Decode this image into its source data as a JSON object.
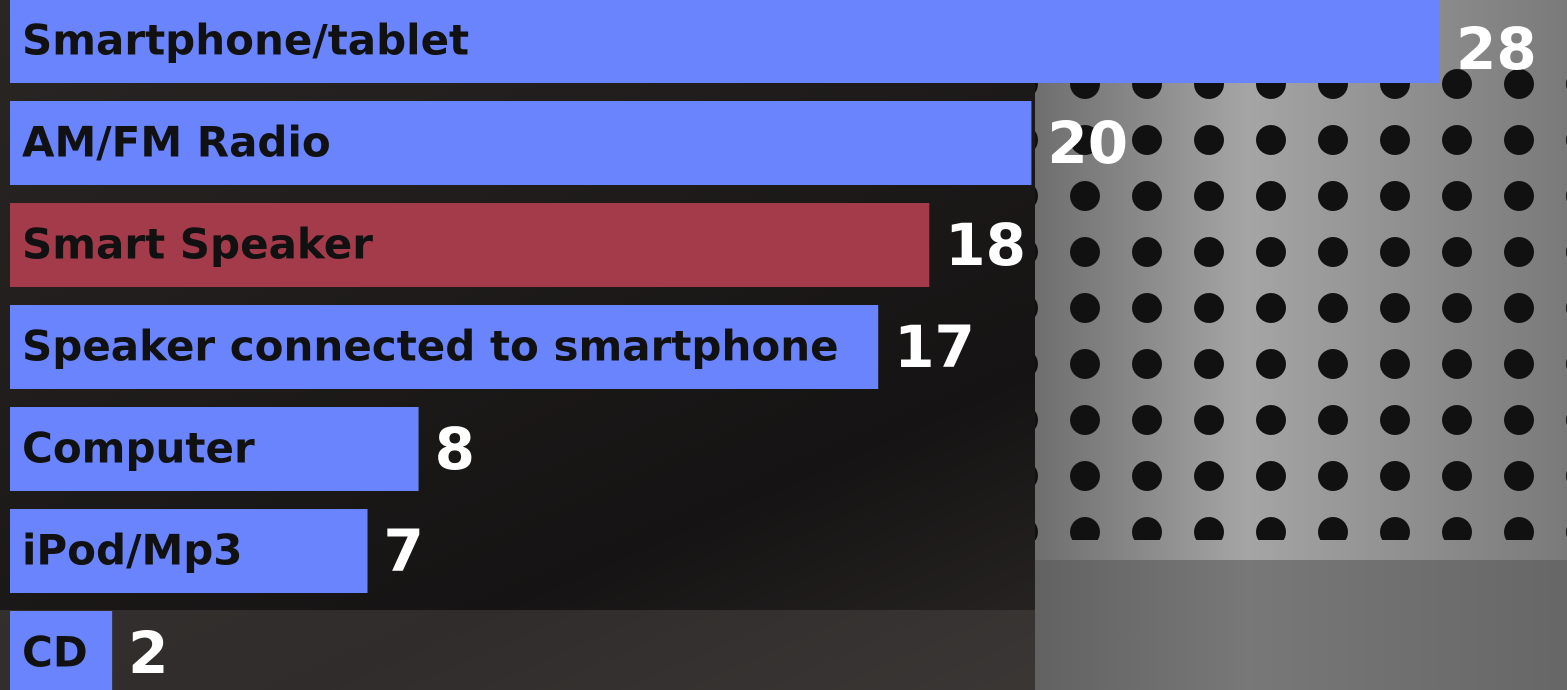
{
  "chart_data": {
    "type": "bar",
    "orientation": "horizontal",
    "categories": [
      "Smartphone/tablet",
      "AM/FM Radio",
      "Smart Speaker",
      "Speaker connected to smartphone",
      "Computer",
      "iPod/Mp3",
      "CD"
    ],
    "values": [
      28,
      20,
      18,
      17,
      8,
      7,
      2
    ],
    "colors": [
      "#6a84fe",
      "#6a84fe",
      "#a33b4b",
      "#6a84fe",
      "#6a84fe",
      "#6a84fe",
      "#6a84fe"
    ]
  }
}
